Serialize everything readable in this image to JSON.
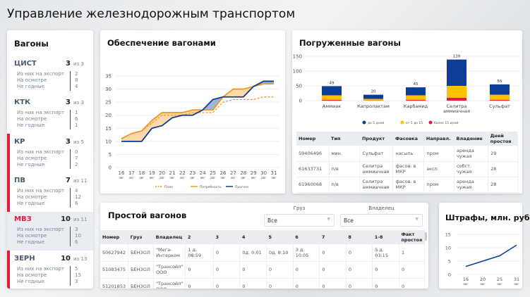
{
  "title": "Управление железнодорожным транспортом",
  "wagons": {
    "title": "Вагоны",
    "labels": [
      "Из них на экспорт",
      "На осмотре",
      "Не годные"
    ],
    "groups": [
      {
        "code": "ЦИСТ",
        "count": "3",
        "of": "из 3",
        "values": [
          "2",
          "8",
          "4"
        ]
      },
      {
        "code": "КТК",
        "count": "3",
        "of": "из 3",
        "values": [
          "1",
          "6",
          "1"
        ]
      },
      {
        "code": "КР",
        "count": "3",
        "of": "из 5",
        "values": [
          "0",
          "7",
          "2"
        ]
      },
      {
        "code": "ПВ",
        "count": "7",
        "of": "из 11",
        "values": [
          "4",
          "12",
          "6"
        ]
      },
      {
        "code": "МВЗ",
        "count": "10",
        "of": "из 11",
        "values": [
          "3",
          "10",
          "6"
        ],
        "selected": true
      },
      {
        "code": "ЗЕРН",
        "count": "10",
        "of": "из 13",
        "values": [
          "5",
          "15",
          "3"
        ]
      }
    ]
  },
  "colors": {
    "accent": "#e8193c",
    "blue": "#0d3d96",
    "orange": "#f7941d",
    "yellow": "#ffc000",
    "red": "#e8193c"
  },
  "chart_data": [
    {
      "type": "line",
      "title": "Обеспечение вагонами",
      "ylim": [
        0,
        35
      ],
      "yticks": [
        0,
        5,
        10,
        15,
        20,
        25,
        30,
        35
      ],
      "categories": [
        "16",
        "17",
        "18",
        "19",
        "20",
        "21",
        "22",
        "23",
        "24",
        "25",
        "26",
        "27",
        "28",
        "29",
        "30",
        "31"
      ],
      "category_sub": "авг",
      "legend": "bottom",
      "series": [
        {
          "name": "План",
          "style": "dashed",
          "values": [
            11,
            13,
            14,
            17,
            20,
            20,
            20,
            21,
            21,
            21,
            25,
            26,
            26,
            26,
            27,
            27
          ]
        },
        {
          "name": "Потребность",
          "values": [
            11,
            13,
            14,
            18,
            21,
            21,
            21,
            22,
            22,
            22,
            27,
            30,
            30,
            31,
            32,
            32
          ]
        },
        {
          "name": "Прогноз",
          "values": [
            10,
            10,
            10,
            15,
            16,
            19,
            20,
            20,
            22,
            26,
            27,
            27,
            27,
            31,
            33,
            33
          ]
        }
      ]
    },
    {
      "type": "bar",
      "stacked": true,
      "title": "Погруженные вагоны",
      "ylim": [
        0,
        150
      ],
      "yticks": [
        0,
        50,
        100,
        150
      ],
      "legend": "bottom",
      "categories": [
        "Аммиак",
        "Капролактам",
        "Карбамид",
        "Селитра аммиачная",
        "Сульфат"
      ],
      "totals": [
        49,
        20,
        45,
        139,
        55
      ],
      "series": [
        {
          "name": "более 15 дней",
          "values": [
            3,
            1,
            3,
            10,
            3
          ]
        },
        {
          "name": "от 5 до 15",
          "values": [
            15,
            5,
            15,
            40,
            17
          ]
        },
        {
          "name": "до 5 дней",
          "values": [
            31,
            14,
            27,
            89,
            35
          ]
        }
      ]
    },
    {
      "type": "line",
      "title": "Штрафы, млн. руб",
      "ylim": [
        0,
        15
      ],
      "yticks": [
        0,
        5,
        10,
        15
      ],
      "categories": [
        "16",
        "20",
        "25",
        "31"
      ],
      "category_sub": "авг",
      "values": [
        3,
        5,
        7,
        11
      ]
    }
  ],
  "loaded_table": {
    "headers": [
      "Номер",
      "Тип",
      "Продукт",
      "Фасовка",
      "Направл.",
      "Владение",
      "Дней простоя"
    ],
    "rows": [
      [
        "59406496",
        "мин.",
        "Сульфат",
        "насыпь",
        "пром",
        "аренда чужая",
        "29"
      ],
      [
        "61633731",
        "п/в",
        "Селитра аммиачная",
        "фасов. в МКР",
        "эксп",
        "собст. чужая",
        "28"
      ],
      [
        "61960068",
        "п/в",
        "Селитра аммиачная",
        "фасов. в МКР",
        "пром",
        "аренда чужая",
        "28"
      ]
    ]
  },
  "idle": {
    "title": "Простой вагонов",
    "filters": [
      {
        "label": "Груз",
        "value": "Все"
      },
      {
        "label": "Владелец",
        "value": "Все"
      }
    ],
    "headers": [
      "Номер",
      "Груз",
      "Владелец",
      "2",
      "3",
      "4",
      "5",
      "6",
      "7",
      "8",
      "1-8",
      "Факт простоя"
    ],
    "rows": [
      [
        "50627942",
        "БЕНЗОЛ",
        "\"Мега-Интерком",
        "1 д. 08:59",
        "0",
        "0д. 0:01",
        "0д. 8:10",
        "3 д. 10:05",
        "0",
        "0",
        "5 д. 03:15",
        "1"
      ],
      [
        "51083475",
        "БЕНЗОЛ",
        "\"Трансойл\" ООО",
        "0",
        "0",
        "0",
        "0",
        "0",
        "0",
        "0",
        "0",
        "0"
      ],
      [
        "51201853",
        "БЕНЗОЛ",
        "\"Трансойл\" ООО",
        "0",
        "0",
        "0",
        "0",
        "0",
        "0",
        "0",
        "0",
        "0"
      ]
    ]
  }
}
